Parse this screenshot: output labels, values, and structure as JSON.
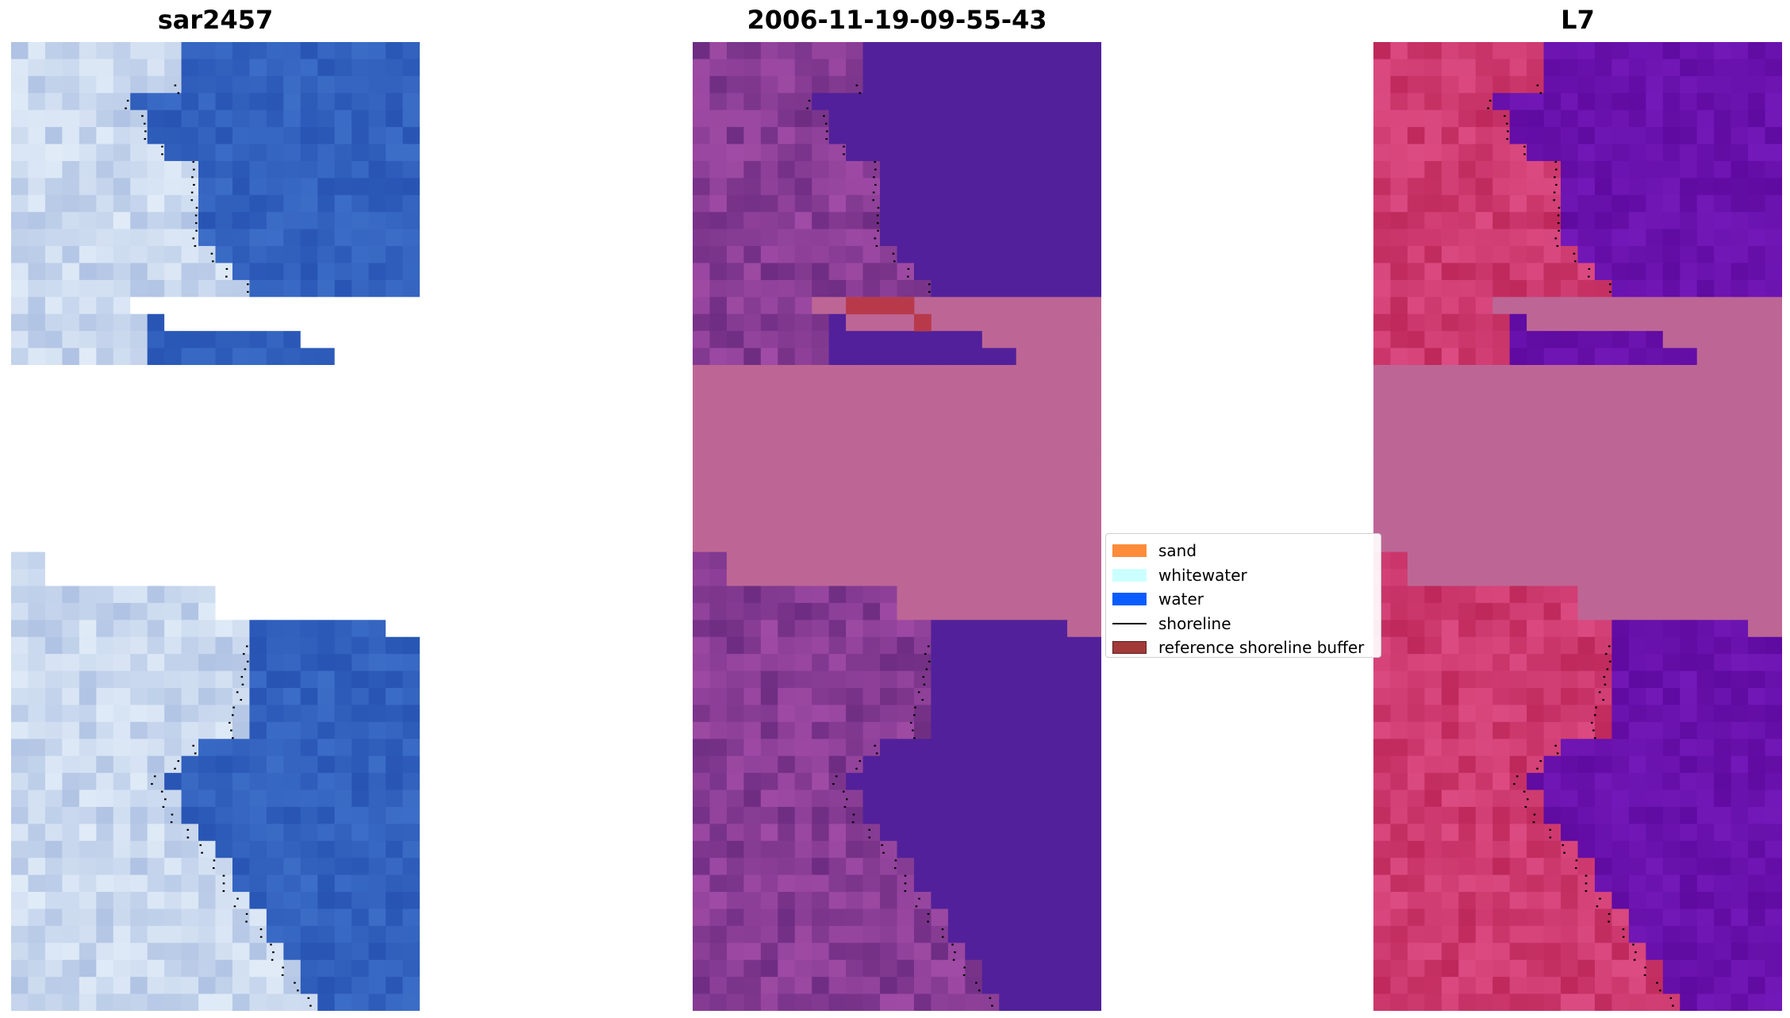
{
  "panels": [
    {
      "title": "sar2457",
      "colormap": "rgb"
    },
    {
      "title": "2006-11-19-09-55-43",
      "colormap": "classified"
    },
    {
      "title": "L7",
      "colormap": "index"
    }
  ],
  "legend": {
    "items": [
      {
        "label": "sand",
        "color": "#ff8c3a",
        "type": "patch"
      },
      {
        "label": "whitewater",
        "color": "#ccffff",
        "type": "patch"
      },
      {
        "label": "water",
        "color": "#0a5cff",
        "type": "patch"
      },
      {
        "label": "shoreline",
        "color": "#000000",
        "type": "line"
      },
      {
        "label": "reference shoreline buffer",
        "color": "#a33a3a",
        "type": "patch"
      }
    ]
  },
  "colors": {
    "background": "#ffffff",
    "nodata": "#bd6695",
    "ocean_classified": "#52209a",
    "ocean_index": "#6a14a8",
    "land_index": "#c42b60",
    "ocean_rgb": "#2f5cb8"
  }
}
